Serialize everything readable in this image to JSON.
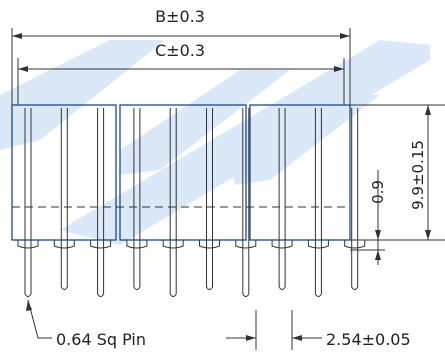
{
  "dimensions": {
    "b_label": "B±0.3",
    "c_label": "C±0.3",
    "height_label": "9.9±0.15",
    "offset_label": "0.9",
    "pin_label": "0.64 Sq Pin",
    "pitch_label": "2.54±0.05"
  },
  "colors": {
    "watermark": "#cfe0f5",
    "drawing": "#333333",
    "body_outline": "#1a4a8a"
  }
}
